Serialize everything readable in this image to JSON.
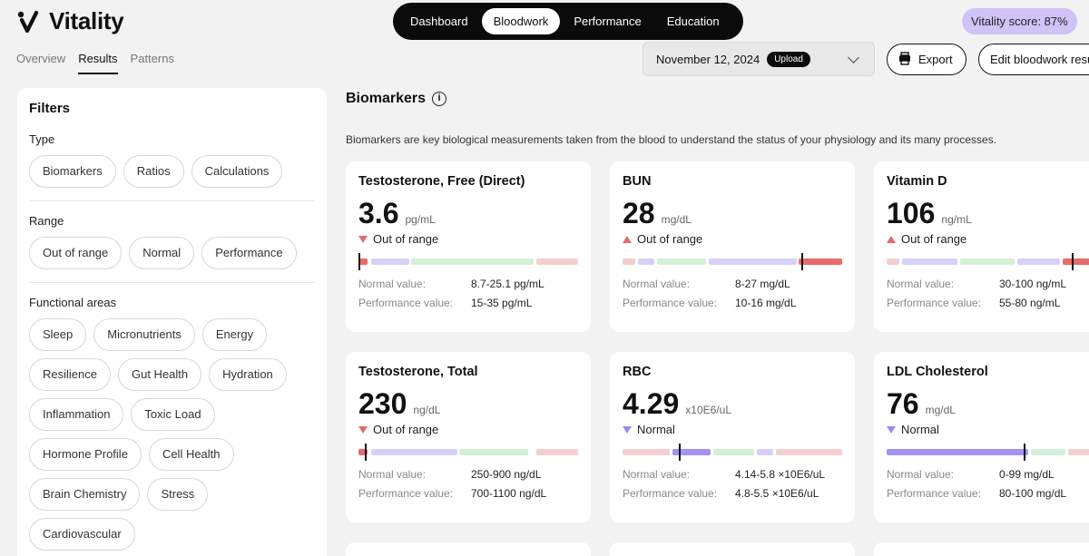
{
  "app": {
    "name": "Vitality"
  },
  "nav": {
    "items": [
      "Dashboard",
      "Bloodwork",
      "Performance",
      "Education"
    ],
    "active": "Bloodwork"
  },
  "score": {
    "label": "Vitality score: 87%"
  },
  "subtabs": {
    "items": [
      "Overview",
      "Results",
      "Patterns"
    ],
    "active": "Results"
  },
  "toolbar": {
    "date": "November 12, 2024",
    "upload_label": "Upload",
    "export_label": "Export",
    "edit_label": "Edit bloodwork results"
  },
  "filters": {
    "title": "Filters",
    "type_title": "Type",
    "type_chips": [
      "Biomarkers",
      "Ratios",
      "Calculations"
    ],
    "range_title": "Range",
    "range_chips": [
      "Out of range",
      "Normal",
      "Performance"
    ],
    "areas_title": "Functional areas",
    "area_chips": [
      "Sleep",
      "Micronutrients",
      "Energy",
      "Resilience",
      "Gut Health",
      "Hydration",
      "Inflammation",
      "Toxic Load",
      "Hormone Profile",
      "Cell Health",
      "Brain Chemistry",
      "Stress",
      "Cardiovascular"
    ]
  },
  "biomarkers": {
    "title": "Biomarkers",
    "description": "Biomarkers are key biological measurements taken from the blood to understand the status of your physiology and its many processes.",
    "normal_label": "Normal value:",
    "performance_label": "Performance value:",
    "cards": [
      {
        "name": "Testosterone, Free (Direct)",
        "value": "3.6",
        "unit": "pg/mL",
        "status": "Out of range",
        "direction": "down",
        "normal": "8.7-25.1 pg/mL",
        "performance": "15-35 pg/mL",
        "marker_fraction": 0.0
      },
      {
        "name": "BUN",
        "value": "28",
        "unit": "mg/dL",
        "status": "Out of range",
        "direction": "up",
        "normal": "8-27 mg/dL",
        "performance": "10-16 mg/dL",
        "marker_fraction": 0.82
      },
      {
        "name": "Vitamin D",
        "value": "106",
        "unit": "ng/mL",
        "status": "Out of range",
        "direction": "up",
        "normal": "30-100 ng/mL",
        "performance": "55-80 ng/mL",
        "marker_fraction": 0.85
      },
      {
        "name": "Testosterone, Total",
        "value": "230",
        "unit": "ng/dL",
        "status": "Out of range",
        "direction": "down",
        "normal": "250-900 ng/dL",
        "performance": "700-1100 ng/dL",
        "marker_fraction": 0.03
      },
      {
        "name": "RBC",
        "value": "4.29",
        "unit": "x10E6/uL",
        "status": "Normal",
        "direction": "normal",
        "normal": "4.14-5.8 ×10E6/uL",
        "performance": "4.8-5.5 ×10E6/uL",
        "marker_fraction": 0.26
      },
      {
        "name": "LDL Cholesterol",
        "value": "76",
        "unit": "mg/dL",
        "status": "Normal",
        "direction": "normal",
        "normal": "0-99 mg/dL",
        "performance": "80-100 mg/dL",
        "marker_fraction": 0.63
      }
    ]
  },
  "colors": {
    "out": "#f4cfcf",
    "out_strong": "#ea6b6b",
    "normal": "#d7d0f6",
    "normal_strong": "#a592ef",
    "perf": "#d4f0d6",
    "score_bg": "#cfc3f7"
  }
}
